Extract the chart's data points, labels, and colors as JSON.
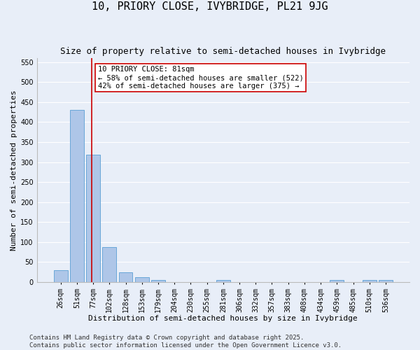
{
  "title": "10, PRIORY CLOSE, IVYBRIDGE, PL21 9JG",
  "subtitle": "Size of property relative to semi-detached houses in Ivybridge",
  "xlabel": "Distribution of semi-detached houses by size in Ivybridge",
  "ylabel": "Number of semi-detached properties",
  "categories": [
    "26sqm",
    "51sqm",
    "77sqm",
    "102sqm",
    "128sqm",
    "153sqm",
    "179sqm",
    "204sqm",
    "230sqm",
    "255sqm",
    "281sqm",
    "306sqm",
    "332sqm",
    "357sqm",
    "383sqm",
    "408sqm",
    "434sqm",
    "459sqm",
    "485sqm",
    "510sqm",
    "536sqm"
  ],
  "values": [
    30,
    430,
    318,
    88,
    25,
    12,
    5,
    0,
    0,
    0,
    5,
    0,
    0,
    0,
    0,
    0,
    0,
    5,
    0,
    5,
    5
  ],
  "bar_color": "#aec6e8",
  "bar_edge_color": "#5a9fd4",
  "red_line_x": 2,
  "red_line_color": "#cc0000",
  "annotation_text": "10 PRIORY CLOSE: 81sqm\n← 58% of semi-detached houses are smaller (522)\n42% of semi-detached houses are larger (375) →",
  "annotation_box_color": "#ffffff",
  "annotation_box_edge_color": "#cc0000",
  "ylim": [
    0,
    560
  ],
  "yticks": [
    0,
    50,
    100,
    150,
    200,
    250,
    300,
    350,
    400,
    450,
    500,
    550
  ],
  "background_color": "#e8eef8",
  "grid_color": "#ffffff",
  "footer_text": "Contains HM Land Registry data © Crown copyright and database right 2025.\nContains public sector information licensed under the Open Government Licence v3.0.",
  "title_fontsize": 11,
  "subtitle_fontsize": 9,
  "axis_label_fontsize": 8,
  "tick_fontsize": 7,
  "annotation_fontsize": 7.5,
  "footer_fontsize": 6.5
}
